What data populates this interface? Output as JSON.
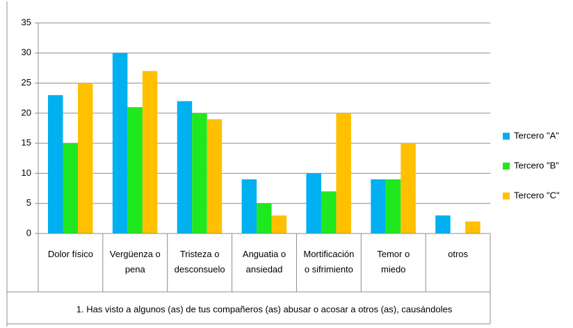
{
  "chart_data": {
    "type": "bar",
    "x_label": "1. Has visto a algunos (as) de tus compañeros (as) abusar o acosar a otros (as), causándoles",
    "categories": [
      "Dolor físico",
      "Vergüenza o\npena",
      "Tristeza o\ndesconsuelo",
      "Anguatia o\nansiedad",
      "Mortificación\no sifrimiento",
      "Temor o\nmiedo",
      "otros"
    ],
    "series": [
      {
        "name": "Tercero \"A\"",
        "color": "#00b0f0",
        "values": [
          23,
          30,
          22,
          9,
          10,
          9,
          3
        ]
      },
      {
        "name": "Tercero \"B\"",
        "color": "#1fe81f",
        "values": [
          15,
          21,
          20,
          5,
          7,
          9,
          0
        ]
      },
      {
        "name": "Tercero \"C\"",
        "color": "#ffc000",
        "values": [
          25,
          27,
          19,
          3,
          20,
          15,
          2
        ]
      }
    ],
    "ylim": [
      0,
      35
    ],
    "yticks": [
      0,
      5,
      10,
      15,
      20,
      25,
      30,
      35
    ],
    "grid": true,
    "legend": "right"
  }
}
